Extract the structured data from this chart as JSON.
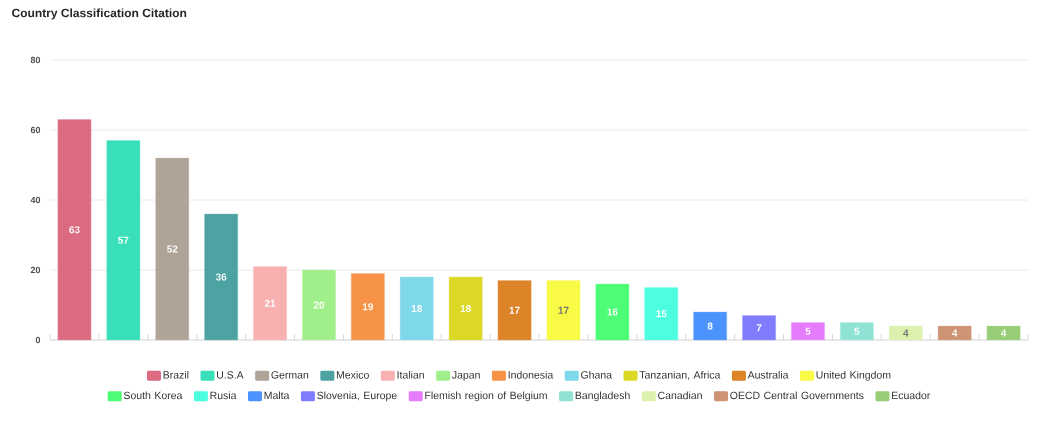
{
  "chart_data": {
    "type": "bar",
    "title": "Country Classification Citation",
    "categories": [
      null,
      null,
      null,
      null,
      null,
      null,
      null,
      null,
      null,
      null,
      null,
      null,
      null,
      null,
      null,
      null,
      null,
      null,
      null,
      null
    ],
    "series": [
      {
        "name": "Brazil",
        "color": "#dc6b82",
        "values": [
          63,
          null,
          null,
          null,
          null,
          null,
          null,
          null,
          null,
          null,
          null,
          null,
          null,
          null,
          null,
          null,
          null,
          null,
          null,
          null
        ]
      },
      {
        "name": "U.S.A",
        "color": "#38dfb9",
        "values": [
          null,
          57,
          null,
          null,
          null,
          null,
          null,
          null,
          null,
          null,
          null,
          null,
          null,
          null,
          null,
          null,
          null,
          null,
          null,
          null
        ]
      },
      {
        "name": "German",
        "color": "#b0a499",
        "values": [
          null,
          null,
          52,
          null,
          null,
          null,
          null,
          null,
          null,
          null,
          null,
          null,
          null,
          null,
          null,
          null,
          null,
          null,
          null,
          null
        ]
      },
      {
        "name": "Mexico",
        "color": "#4ca3a2",
        "values": [
          null,
          null,
          null,
          36,
          null,
          null,
          null,
          null,
          null,
          null,
          null,
          null,
          null,
          null,
          null,
          null,
          null,
          null,
          null,
          null
        ]
      },
      {
        "name": "Italian",
        "color": "#f9b0b1",
        "values": [
          null,
          null,
          null,
          null,
          21,
          null,
          null,
          null,
          null,
          null,
          null,
          null,
          null,
          null,
          null,
          null,
          null,
          null,
          null,
          null
        ]
      },
      {
        "name": "Japan",
        "color": "#a1ef8b",
        "values": [
          null,
          null,
          null,
          null,
          null,
          20,
          null,
          null,
          null,
          null,
          null,
          null,
          null,
          null,
          null,
          null,
          null,
          null,
          null,
          null
        ]
      },
      {
        "name": "Indonesia",
        "color": "#f79346",
        "values": [
          null,
          null,
          null,
          null,
          null,
          null,
          19,
          null,
          null,
          null,
          null,
          null,
          null,
          null,
          null,
          null,
          null,
          null,
          null,
          null
        ]
      },
      {
        "name": "Ghana",
        "color": "#7fd8ea",
        "values": [
          null,
          null,
          null,
          null,
          null,
          null,
          null,
          18,
          null,
          null,
          null,
          null,
          null,
          null,
          null,
          null,
          null,
          null,
          null,
          null
        ]
      },
      {
        "name": "Tanzanian, Africa",
        "color": "#dcd826",
        "values": [
          null,
          null,
          null,
          null,
          null,
          null,
          null,
          null,
          18,
          null,
          null,
          null,
          null,
          null,
          null,
          null,
          null,
          null,
          null,
          null
        ]
      },
      {
        "name": "Australia",
        "color": "#dd8328",
        "values": [
          null,
          null,
          null,
          null,
          null,
          null,
          null,
          null,
          null,
          17,
          null,
          null,
          null,
          null,
          null,
          null,
          null,
          null,
          null,
          null
        ]
      },
      {
        "name": "United Kingdom",
        "color": "#f8fa46",
        "values": [
          null,
          null,
          null,
          null,
          null,
          null,
          null,
          null,
          null,
          null,
          17,
          null,
          null,
          null,
          null,
          null,
          null,
          null,
          null,
          null
        ]
      },
      {
        "name": "South Korea",
        "color": "#4dfd76",
        "values": [
          null,
          null,
          null,
          null,
          null,
          null,
          null,
          null,
          null,
          null,
          null,
          16,
          null,
          null,
          null,
          null,
          null,
          null,
          null,
          null
        ]
      },
      {
        "name": "Rusia",
        "color": "#4cfde0",
        "values": [
          null,
          null,
          null,
          null,
          null,
          null,
          null,
          null,
          null,
          null,
          null,
          null,
          15,
          null,
          null,
          null,
          null,
          null,
          null,
          null
        ]
      },
      {
        "name": "Malta",
        "color": "#4d93fe",
        "values": [
          null,
          null,
          null,
          null,
          null,
          null,
          null,
          null,
          null,
          null,
          null,
          null,
          null,
          8,
          null,
          null,
          null,
          null,
          null,
          null
        ]
      },
      {
        "name": "Slovenia, Europe",
        "color": "#7f7cfd",
        "values": [
          null,
          null,
          null,
          null,
          null,
          null,
          null,
          null,
          null,
          null,
          null,
          null,
          null,
          null,
          7,
          null,
          null,
          null,
          null,
          null
        ]
      },
      {
        "name": "Flemish region of Belgium",
        "color": "#e57cfb",
        "values": [
          null,
          null,
          null,
          null,
          null,
          null,
          null,
          null,
          null,
          null,
          null,
          null,
          null,
          null,
          null,
          5,
          null,
          null,
          null,
          null
        ]
      },
      {
        "name": "Bangladesh",
        "color": "#8fe3d4",
        "values": [
          null,
          null,
          null,
          null,
          null,
          null,
          null,
          null,
          null,
          null,
          null,
          null,
          null,
          null,
          null,
          null,
          5,
          null,
          null,
          null
        ]
      },
      {
        "name": "Canadian",
        "color": "#ddf1ae",
        "values": [
          null,
          null,
          null,
          null,
          null,
          null,
          null,
          null,
          null,
          null,
          null,
          null,
          null,
          null,
          null,
          null,
          null,
          4,
          null,
          null
        ]
      },
      {
        "name": "OECD Central Governments",
        "color": "#cd9373",
        "values": [
          null,
          null,
          null,
          null,
          null,
          null,
          null,
          null,
          null,
          null,
          null,
          null,
          null,
          null,
          null,
          null,
          null,
          null,
          4,
          null
        ]
      },
      {
        "name": "Ecuador",
        "color": "#98cd77",
        "values": [
          null,
          null,
          null,
          null,
          null,
          null,
          null,
          null,
          null,
          null,
          null,
          null,
          null,
          null,
          null,
          null,
          null,
          null,
          null,
          4
        ]
      }
    ],
    "ylim": [
      0,
      80
    ],
    "yticks": [
      0,
      20,
      40,
      60,
      80
    ],
    "grid": "y",
    "legend": "bottom",
    "tick_labels": "y",
    "data_labels": true
  }
}
